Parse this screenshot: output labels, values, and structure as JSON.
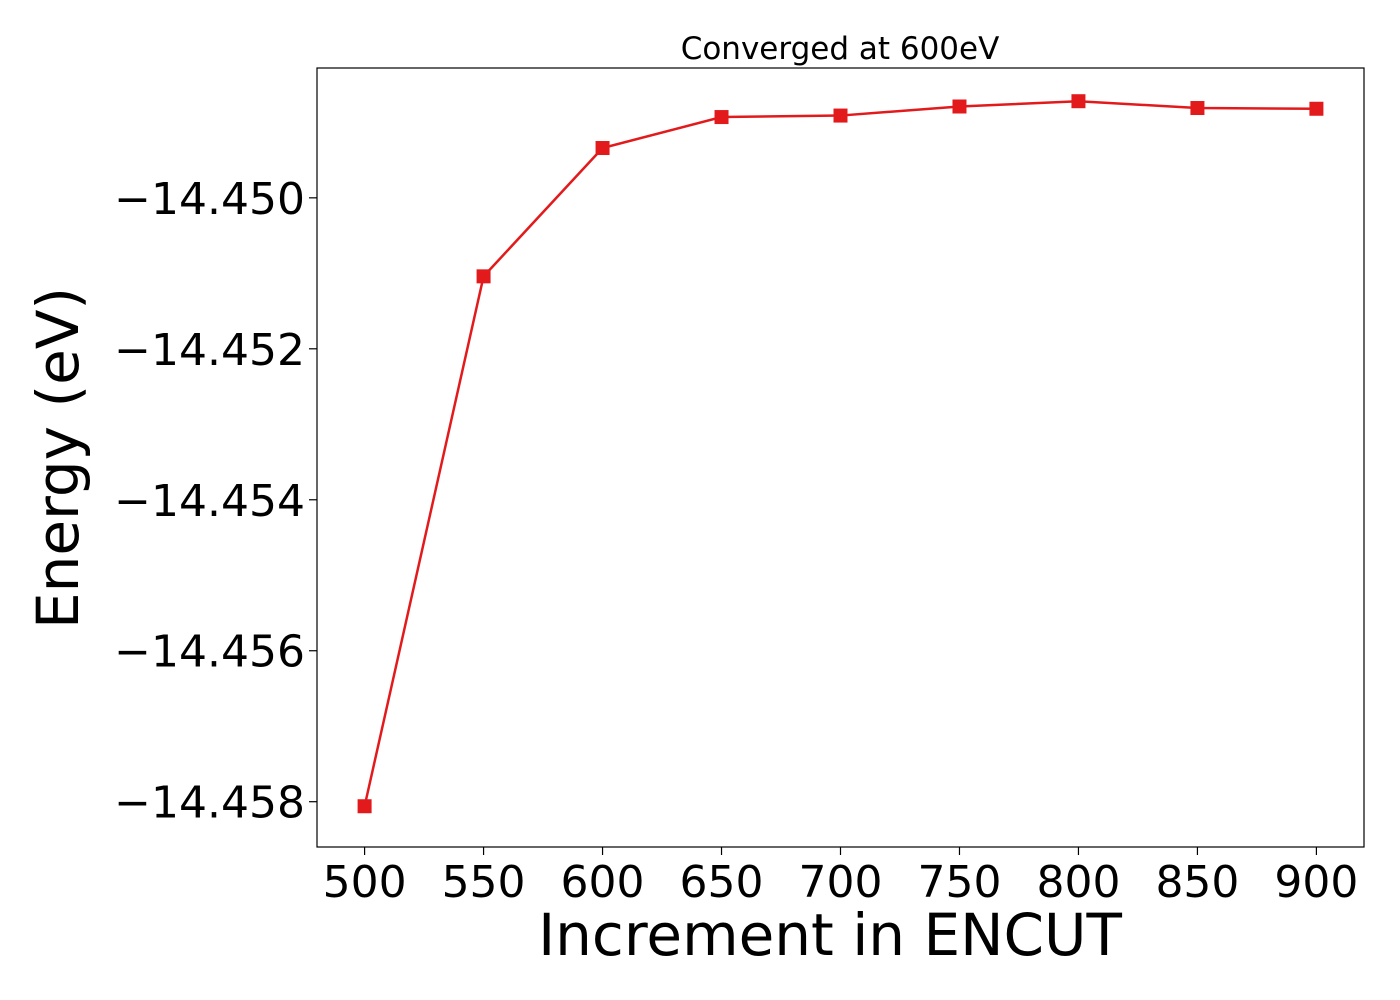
{
  "chart_data": {
    "type": "line",
    "title": "Converged at 600eV",
    "xlabel": "Increment in ENCUT",
    "ylabel": "Energy (eV)",
    "x": [
      500,
      550,
      600,
      650,
      700,
      750,
      800,
      850,
      900
    ],
    "xticks": [
      "500",
      "550",
      "600",
      "650",
      "700",
      "750",
      "800",
      "850",
      "900"
    ],
    "xlim": [
      480,
      920
    ],
    "yticks": [
      -14.458,
      -14.456,
      -14.454,
      -14.452,
      -14.45
    ],
    "ytick_labels": [
      "−14.458",
      "−14.456",
      "−14.454",
      "−14.452",
      "−14.450"
    ],
    "ylim": [
      -14.4586,
      -14.44828
    ],
    "grid": false,
    "series": [
      {
        "values": [
          -14.45806,
          -14.45104,
          -14.44934,
          -14.44893,
          -14.44891,
          -14.44879,
          -14.44872,
          -14.44881,
          -14.44882
        ],
        "color": "#e31a1c",
        "marker": "square"
      }
    ]
  }
}
